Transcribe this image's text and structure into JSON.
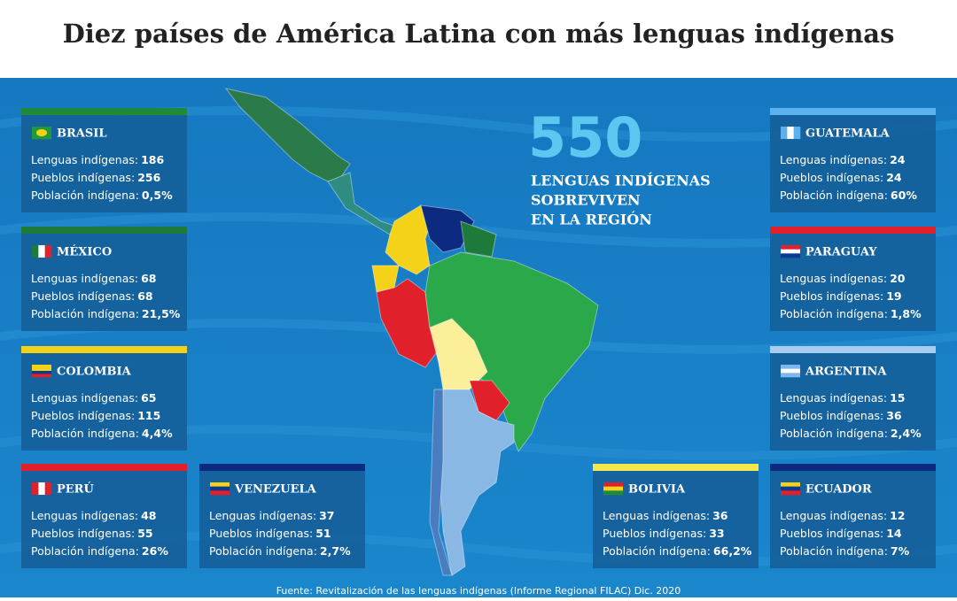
{
  "header": {
    "title": "Diez países de América Latina con más lenguas indígenas"
  },
  "highlight": {
    "number": "550",
    "lines": [
      "LENGUAS INDÍGENAS",
      "SOBREVIVEN",
      "EN LA REGIÓN"
    ]
  },
  "labels": [
    "Lenguas indígenas:",
    "Pueblos indígenas:",
    "Población indígena:"
  ],
  "countries": [
    {
      "name": "BRASIL",
      "values": [
        "186",
        "256",
        "0,5%"
      ]
    },
    {
      "name": "MÉXICO",
      "values": [
        "68",
        "68",
        "21,5%"
      ]
    },
    {
      "name": "COLOMBIA",
      "values": [
        "65",
        "115",
        "4,4%"
      ]
    },
    {
      "name": "PERÚ",
      "values": [
        "48",
        "55",
        "26%"
      ]
    },
    {
      "name": "VENEZUELA",
      "values": [
        "37",
        "51",
        "2,7%"
      ]
    },
    {
      "name": "BOLIVIA",
      "values": [
        "36",
        "33",
        "66,2%"
      ]
    },
    {
      "name": "GUATEMALA",
      "values": [
        "24",
        "24",
        "60%"
      ]
    },
    {
      "name": "PARAGUAY",
      "values": [
        "20",
        "19",
        "1,8%"
      ]
    },
    {
      "name": "ARGENTINA",
      "values": [
        "15",
        "36",
        "2,4%"
      ]
    },
    {
      "name": "ECUADOR",
      "values": [
        "12",
        "14",
        "7%"
      ]
    }
  ],
  "source": "Fuente: Revitalización de las lenguas indígenas (Informe Regional FILAC) Dic. 2020"
}
